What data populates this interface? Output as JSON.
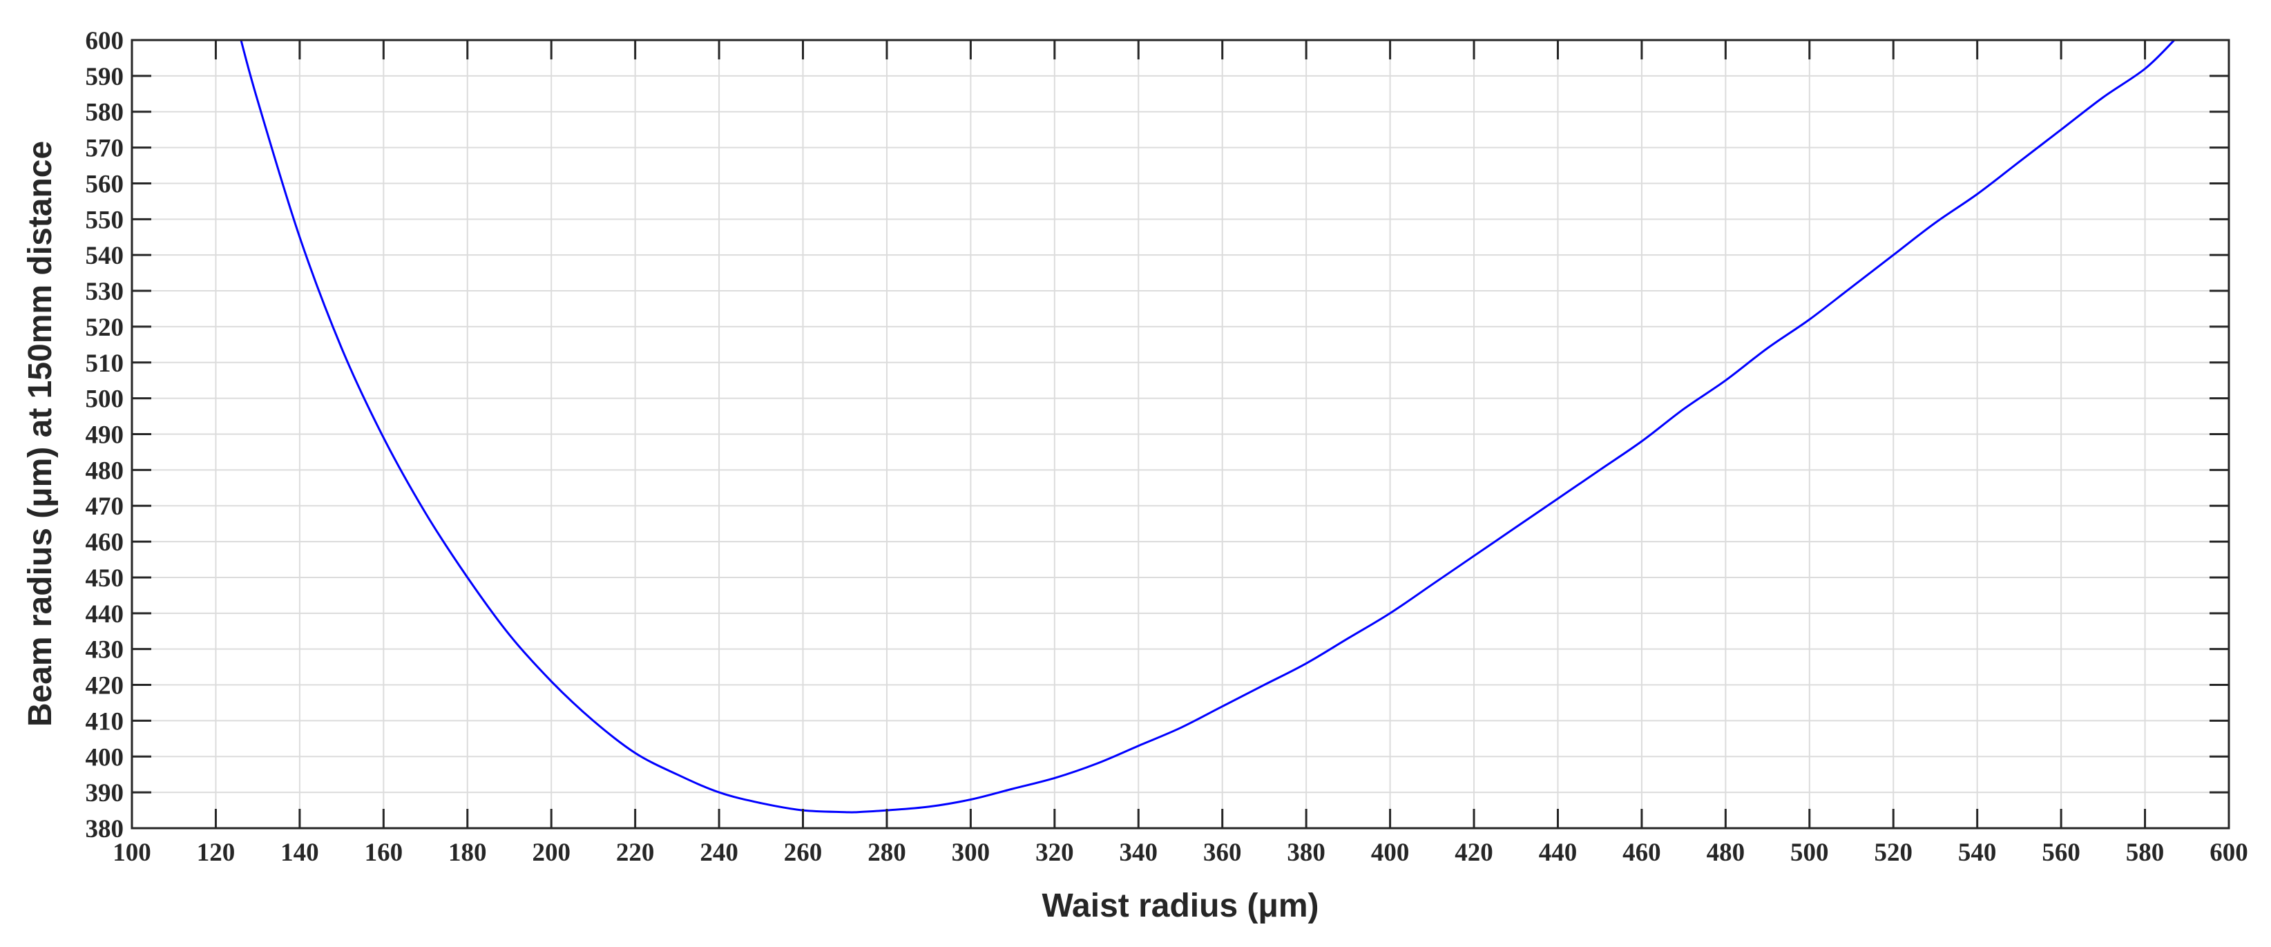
{
  "chart_data": {
    "type": "line",
    "title": "",
    "xlabel": "Waist radius (μm)",
    "ylabel": "Beam radius (μm) at 150mm distance",
    "xlim": [
      100,
      600
    ],
    "ylim": [
      380,
      600
    ],
    "grid": true,
    "x_ticks": [
      "100",
      "120",
      "140",
      "160",
      "180",
      "200",
      "220",
      "240",
      "260",
      "280",
      "300",
      "320",
      "340",
      "360",
      "380",
      "400",
      "420",
      "440",
      "460",
      "480",
      "500",
      "520",
      "540",
      "560",
      "580",
      "600"
    ],
    "y_ticks": [
      "380",
      "390",
      "400",
      "410",
      "420",
      "430",
      "440",
      "450",
      "460",
      "470",
      "480",
      "490",
      "500",
      "510",
      "520",
      "530",
      "540",
      "550",
      "560",
      "570",
      "580",
      "590",
      "600"
    ],
    "series": [
      {
        "color": "#0000ff",
        "x": [
          126,
          130,
          140,
          150,
          160,
          170,
          180,
          190,
          200,
          210,
          220,
          230,
          240,
          250,
          260,
          270,
          273,
          280,
          290,
          300,
          310,
          320,
          330,
          340,
          350,
          360,
          370,
          380,
          390,
          400,
          410,
          420,
          430,
          440,
          450,
          460,
          470,
          480,
          490,
          500,
          510,
          520,
          530,
          540,
          550,
          560,
          570,
          580,
          587
        ],
        "y": [
          600,
          583,
          545,
          514,
          489,
          468,
          450,
          434,
          421,
          410,
          401,
          395,
          390,
          387,
          385,
          384.5,
          384.5,
          385,
          386,
          388,
          391,
          394,
          398,
          403,
          408,
          414,
          420,
          426,
          433,
          440,
          448,
          456,
          464,
          472,
          480,
          488,
          497,
          505,
          514,
          522,
          531,
          540,
          549,
          557,
          566,
          575,
          584,
          592,
          600
        ]
      }
    ]
  }
}
